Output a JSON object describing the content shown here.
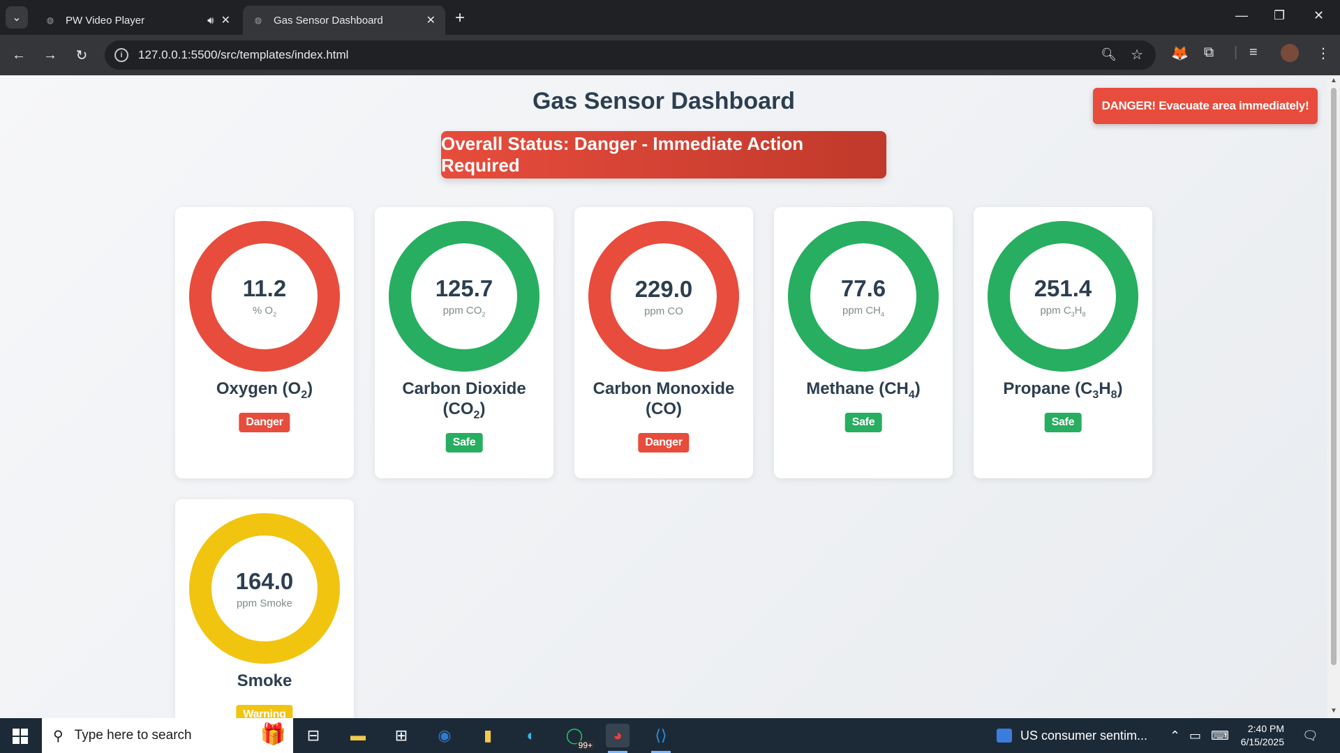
{
  "browser": {
    "tabs": [
      {
        "title": "PW Video Player",
        "active": false,
        "audio": true
      },
      {
        "title": "Gas Sensor Dashboard",
        "active": true,
        "audio": false
      }
    ],
    "url": "127.0.0.1:5500/src/templates/index.html"
  },
  "page": {
    "title": "Gas Sensor Dashboard",
    "overall_status": "Overall Status: Danger - Immediate Action Required",
    "alert": "DANGER! Evacuate area immediately!"
  },
  "sensors": [
    {
      "value": "11.2",
      "unit": "% O",
      "unit_sub": "2",
      "name": "Oxygen (O",
      "name_sub": "2",
      "name_tail": ")",
      "status": "Danger",
      "color": "#e74c3c"
    },
    {
      "value": "125.7",
      "unit": "ppm CO",
      "unit_sub": "2",
      "name": "Carbon Dioxide (CO",
      "name_sub": "2",
      "name_tail": ")",
      "status": "Safe",
      "color": "#27ae60"
    },
    {
      "value": "229.0",
      "unit": "ppm CO",
      "unit_sub": "",
      "name": "Carbon Monoxide (CO)",
      "name_sub": "",
      "name_tail": "",
      "status": "Danger",
      "color": "#e74c3c"
    },
    {
      "value": "77.6",
      "unit": "ppm CH",
      "unit_sub": "4",
      "name": "Methane (CH",
      "name_sub": "4",
      "name_tail": ")",
      "status": "Safe",
      "color": "#27ae60"
    },
    {
      "value": "251.4",
      "unit": "ppm C",
      "unit_sub": "3",
      "unit_mid": "H",
      "unit_sub2": "8",
      "name": "Propane (C",
      "name_sub": "3",
      "name_mid": "H",
      "name_sub2": "8",
      "name_tail": ")",
      "status": "Safe",
      "color": "#27ae60"
    },
    {
      "value": "164.0",
      "unit": "ppm Smoke",
      "unit_sub": "",
      "name": "Smoke",
      "name_sub": "",
      "name_tail": "",
      "status": "Warning",
      "color": "#f1c40f"
    }
  ],
  "taskbar": {
    "search_placeholder": "Type here to search",
    "whatsapp_badge": "99+",
    "news": "US consumer sentim...",
    "time": "2:40 PM",
    "date": "6/15/2025"
  },
  "colors": {
    "danger": "#e74c3c",
    "safe": "#27ae60",
    "warning": "#f1c40f"
  }
}
